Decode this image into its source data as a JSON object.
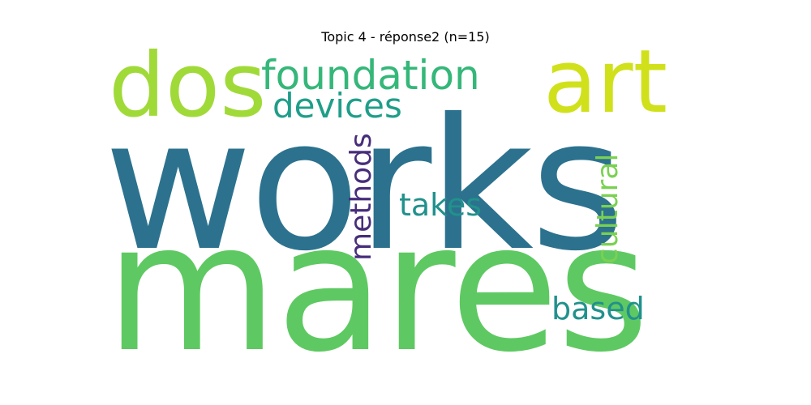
{
  "title": "Topic 4 - réponse2 (n=15)",
  "cloud": {
    "words": [
      {
        "text": "works",
        "color": "#2c728e",
        "orientation": "horizontal"
      },
      {
        "text": "mares",
        "color": "#5ec962",
        "orientation": "horizontal"
      },
      {
        "text": "dos",
        "color": "#a0da39",
        "orientation": "horizontal"
      },
      {
        "text": "art",
        "color": "#d0e11c",
        "orientation": "horizontal"
      },
      {
        "text": "foundation",
        "color": "#35b779",
        "orientation": "horizontal"
      },
      {
        "text": "devices",
        "color": "#1f9e89",
        "orientation": "horizontal"
      },
      {
        "text": "methods",
        "color": "#472d7b",
        "orientation": "vertical"
      },
      {
        "text": "takes",
        "color": "#21918c",
        "orientation": "horizontal"
      },
      {
        "text": "cultural",
        "color": "#7ad151",
        "orientation": "vertical"
      },
      {
        "text": "based",
        "color": "#21918c",
        "orientation": "horizontal"
      }
    ]
  }
}
